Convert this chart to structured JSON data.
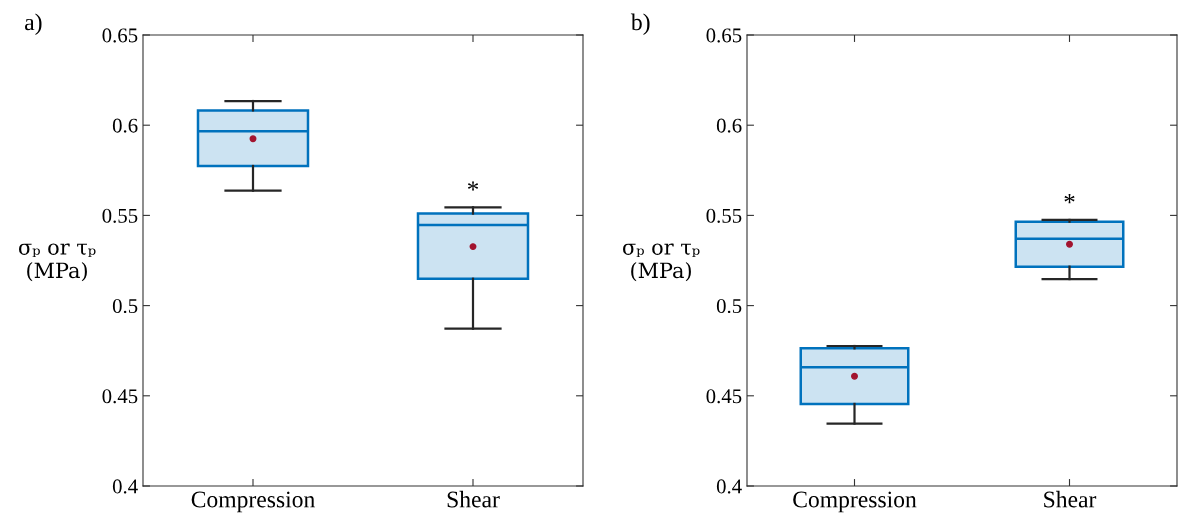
{
  "chart_data": [
    {
      "type": "box",
      "title": "a)",
      "ylabel": "σₚ or τₚ\n(MPa)",
      "categories": [
        "Compression",
        "Shear"
      ],
      "color": "#0072bd",
      "ylim": [
        0.4,
        0.65
      ],
      "yticks": [
        0.4,
        0.45,
        0.5,
        0.55,
        0.6,
        0.65
      ],
      "grid": false,
      "boxes": [
        {
          "low": 0.5637,
          "q1": 0.5774,
          "median": 0.5966,
          "q3": 0.6082,
          "high": 0.6134,
          "mean": 0.5925
        },
        {
          "low": 0.4872,
          "q1": 0.5149,
          "median": 0.5447,
          "q3": 0.551,
          "high": 0.5545,
          "mean": 0.5327
        }
      ],
      "annotations": [
        "*"
      ]
    },
    {
      "type": "box",
      "title": "b)",
      "ylabel": "σₚ or τₚ\n(MPa)",
      "categories": [
        "Compression",
        "Shear"
      ],
      "color": "#0072bd",
      "ylim": [
        0.4,
        0.65
      ],
      "yticks": [
        0.4,
        0.45,
        0.5,
        0.55,
        0.6,
        0.65
      ],
      "grid": false,
      "boxes": [
        {
          "low": 0.4346,
          "q1": 0.4455,
          "median": 0.4658,
          "q3": 0.4763,
          "high": 0.4776,
          "mean": 0.4608
        },
        {
          "low": 0.5147,
          "q1": 0.5216,
          "median": 0.5371,
          "q3": 0.5465,
          "high": 0.5475,
          "mean": 0.534
        }
      ],
      "annotations": [
        "*"
      ]
    }
  ]
}
